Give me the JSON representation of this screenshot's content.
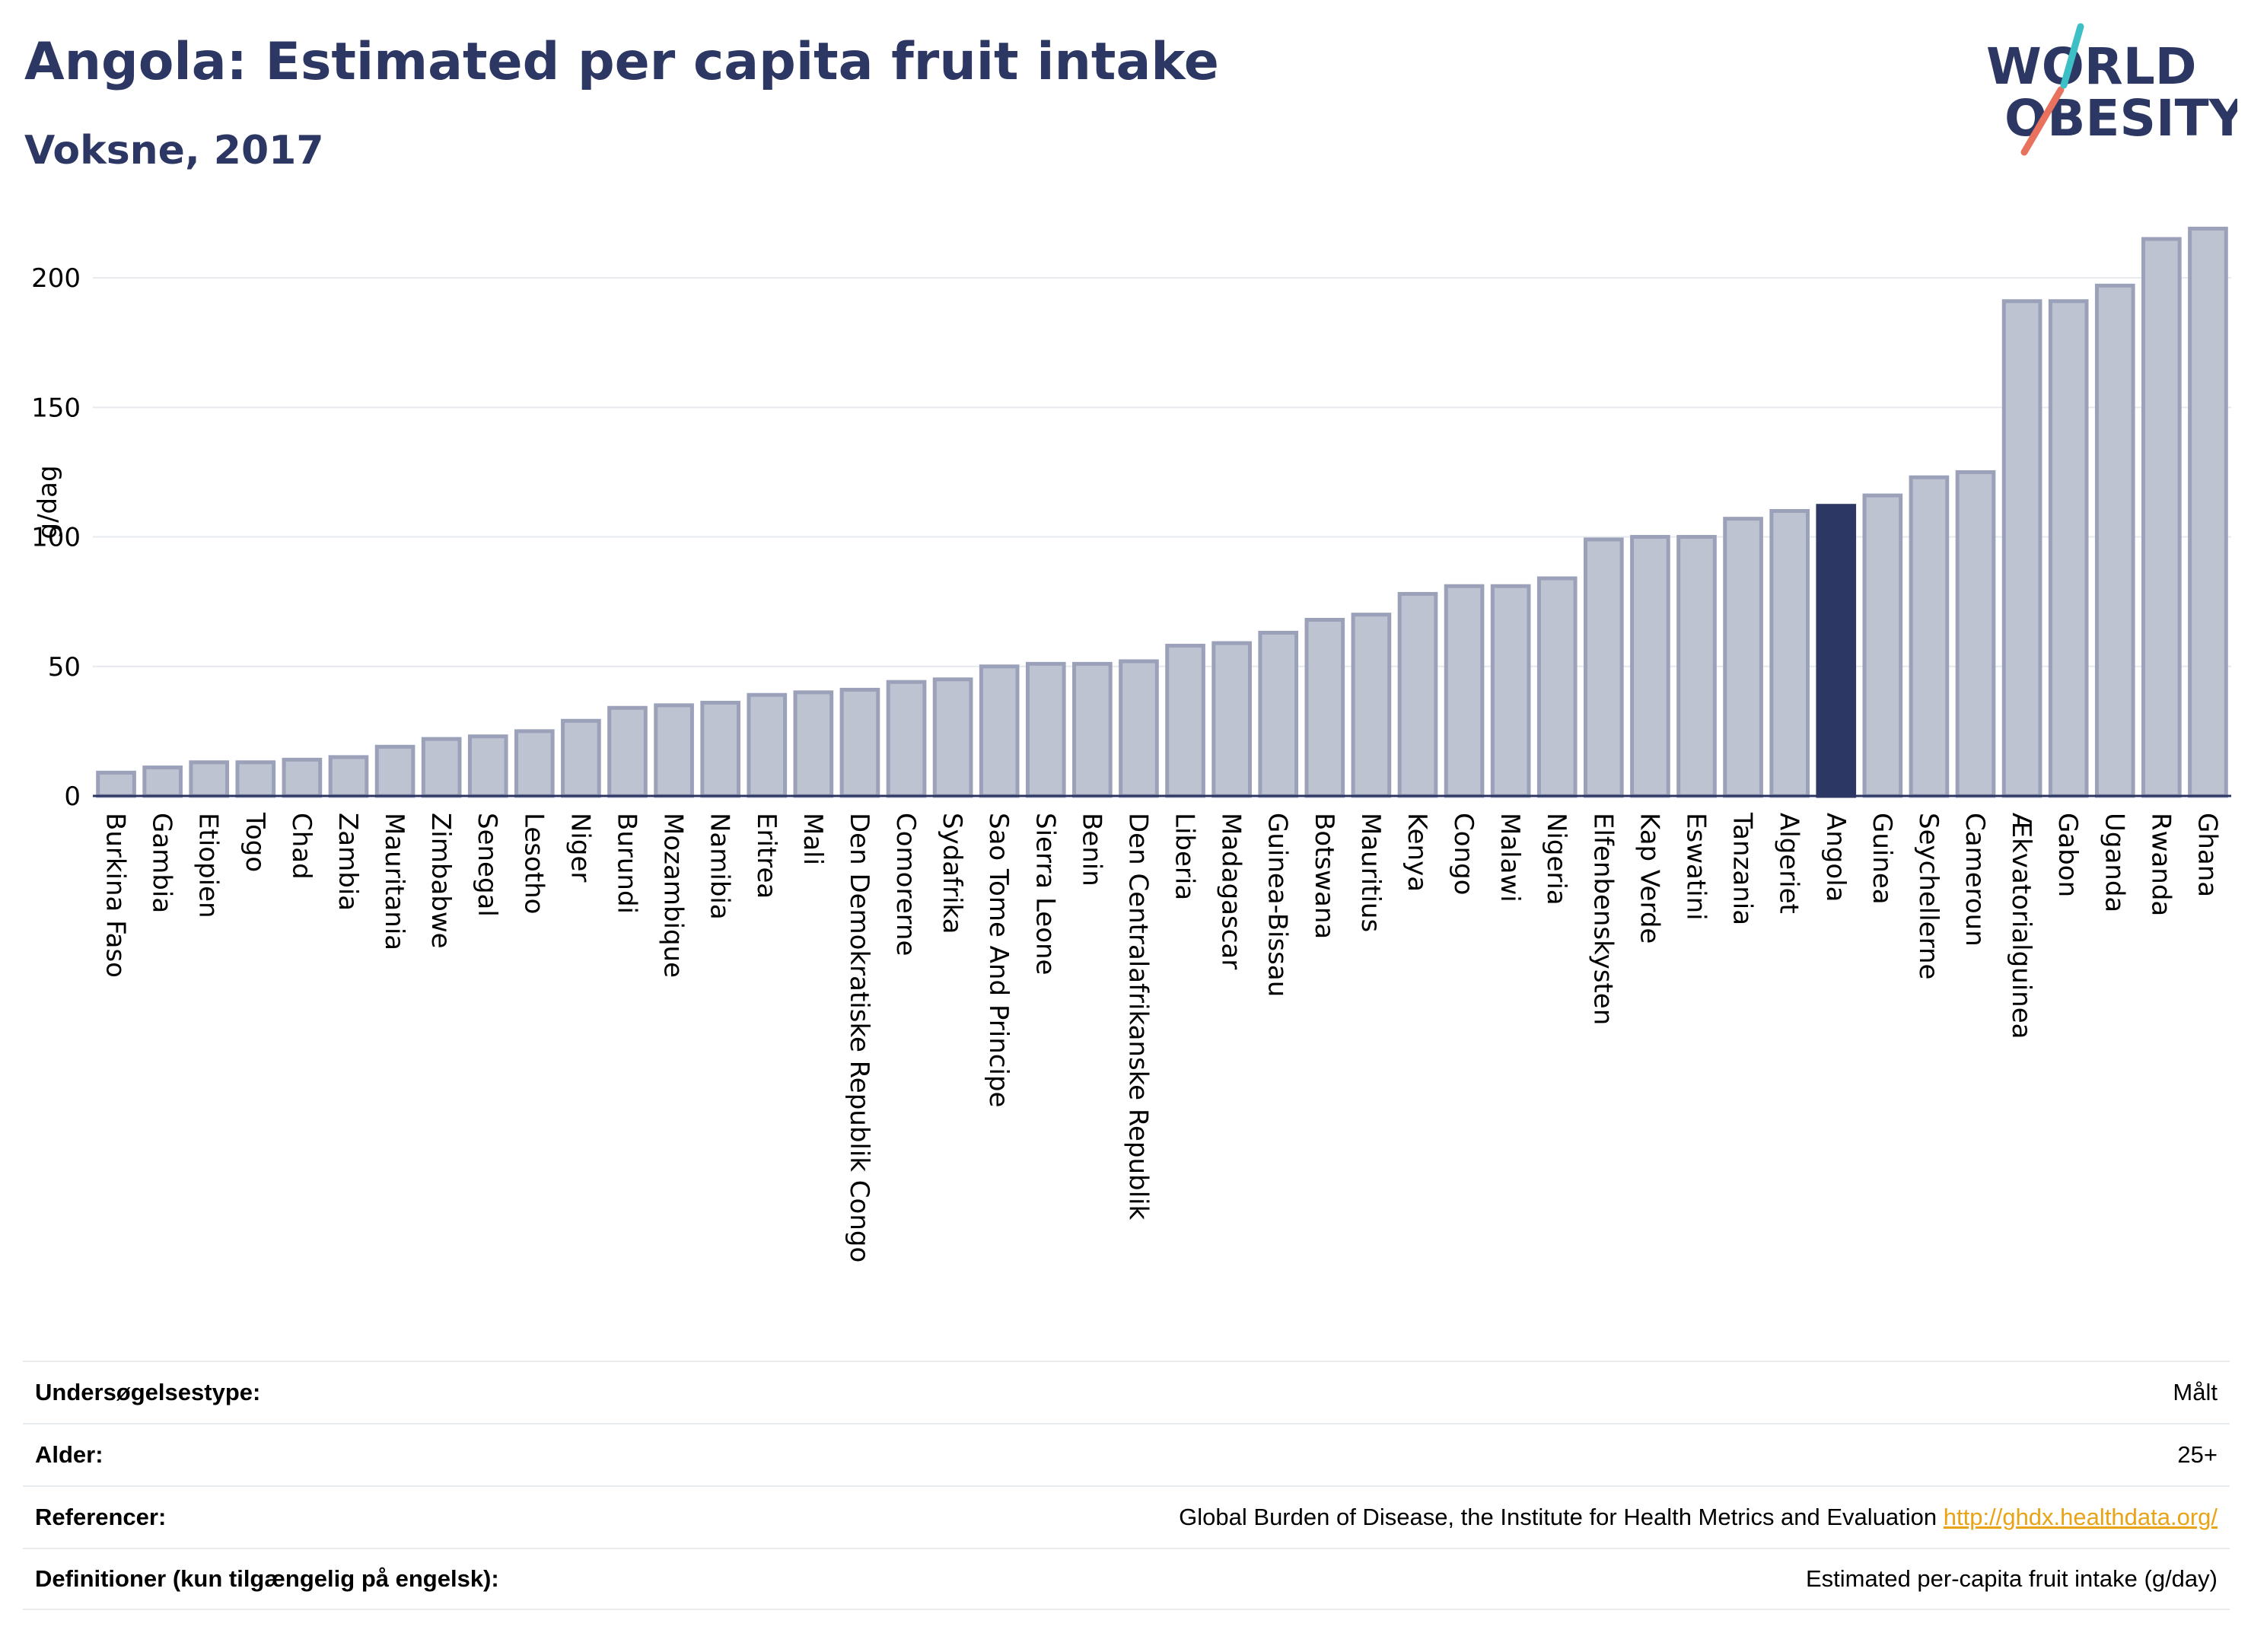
{
  "header": {
    "title": "Angola: Estimated per capita fruit intake",
    "subtitle": "Voksne, 2017"
  },
  "logo": {
    "line1": "WORLD",
    "line2": "OBESITY"
  },
  "colors": {
    "bar": "#bec3d1",
    "bar_border": "#9aa1b8",
    "highlight": "#2c3763",
    "title": "#2c3763",
    "grid": "#e6e9ee",
    "accent_teal": "#3cbfc5",
    "accent_coral": "#e8725e"
  },
  "chart_data": {
    "type": "bar",
    "ylabel": "g/dag",
    "ylim": [
      0,
      225
    ],
    "yticks": [
      0,
      50,
      100,
      150,
      200
    ],
    "grid": true,
    "highlight": "Angola",
    "categories": [
      "Burkina Faso",
      "Gambia",
      "Etiopien",
      "Togo",
      "Chad",
      "Zambia",
      "Mauritania",
      "Zimbabwe",
      "Senegal",
      "Lesotho",
      "Niger",
      "Burundi",
      "Mozambique",
      "Namibia",
      "Eritrea",
      "Mali",
      "Den Demokratiske Republik Congo",
      "Comorerne",
      "Sydafrika",
      "Sao Tome And Principe",
      "Sierra Leone",
      "Benin",
      "Den Centralafrikanske Republik",
      "Liberia",
      "Madagascar",
      "Guinea-Bissau",
      "Botswana",
      "Mauritius",
      "Kenya",
      "Congo",
      "Malawi",
      "Nigeria",
      "Elfenbenskysten",
      "Kap Verde",
      "Eswatini",
      "Tanzania",
      "Algeriet",
      "Angola",
      "Guinea",
      "Seychellerne",
      "Cameroun",
      "Ækvatorialguinea",
      "Gabon",
      "Uganda",
      "Rwanda",
      "Ghana"
    ],
    "values": [
      9,
      11,
      13,
      13,
      14,
      15,
      19,
      22,
      23,
      25,
      29,
      34,
      35,
      36,
      39,
      40,
      41,
      44,
      45,
      50,
      51,
      51,
      52,
      58,
      59,
      63,
      68,
      70,
      78,
      81,
      81,
      84,
      99,
      100,
      100,
      107,
      110,
      112,
      116,
      123,
      125,
      191,
      191,
      197,
      215,
      219
    ]
  },
  "info": {
    "rows": [
      {
        "label": "Undersøgelsestype:",
        "value": "Målt"
      },
      {
        "label": "Alder:",
        "value": "25+"
      },
      {
        "label": "Referencer:",
        "value": "Global Burden of Disease, the Institute for Health Metrics and Evaluation",
        "link": "http://ghdx.healthdata.org/"
      },
      {
        "label": "Definitioner (kun tilgængelig på engelsk):",
        "value": "Estimated per-capita fruit intake (g/day)"
      }
    ]
  }
}
